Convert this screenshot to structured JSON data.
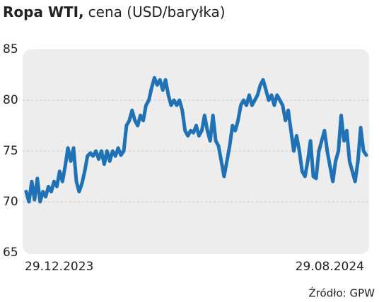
{
  "chart_data": {
    "type": "line",
    "title": "Ropa WTI,",
    "subtitle": "cena (USD/baryłka)",
    "source": "Źródło: GPW",
    "categories": [
      "29.12.2023",
      null,
      null,
      null,
      null,
      null,
      null,
      null,
      null,
      null,
      null,
      null,
      null,
      null,
      null,
      null,
      null,
      null,
      null,
      null,
      null,
      null,
      null,
      null,
      null,
      null,
      null,
      null,
      null,
      null,
      null,
      null,
      null,
      null,
      null,
      null,
      null,
      null,
      null,
      null,
      null,
      null,
      null,
      null,
      null,
      null,
      null,
      null,
      null,
      null,
      null,
      null,
      null,
      null,
      null,
      null,
      null,
      null,
      null,
      null,
      null,
      null,
      null,
      null,
      null,
      null,
      null,
      null,
      null,
      null,
      null,
      null,
      null,
      null,
      null,
      null,
      null,
      null,
      null,
      null,
      null,
      null,
      null,
      null,
      null,
      null,
      null,
      null,
      null,
      null,
      null,
      null,
      null,
      null,
      null,
      null,
      null,
      null,
      null,
      null,
      null,
      null,
      null,
      null,
      null,
      null,
      null,
      null,
      null,
      null,
      null,
      null,
      null,
      null,
      null,
      null,
      null,
      null,
      null,
      null,
      null,
      null,
      "29.08.2024"
    ],
    "values": [
      71,
      70,
      72,
      70.2,
      72.3,
      70,
      71,
      70.5,
      71.5,
      71,
      72,
      71.5,
      73,
      72,
      73.5,
      75.3,
      74,
      75.3,
      72,
      71,
      71.8,
      73,
      74.5,
      74.8,
      74.5,
      75,
      74.2,
      75,
      73.7,
      75,
      74,
      75,
      74.5,
      75.3,
      74.6,
      75,
      77.5,
      78,
      79,
      78,
      77.5,
      78.5,
      78,
      79.5,
      80,
      81.2,
      82.2,
      81.5,
      82,
      81,
      82,
      80.5,
      79.5,
      80,
      79.5,
      80,
      79,
      77,
      76.5,
      77,
      76.8,
      77.5,
      76.5,
      77,
      78.5,
      77,
      76,
      78.5,
      76,
      75.5,
      74,
      72.5,
      74,
      75.5,
      77.5,
      77,
      78,
      79.5,
      80,
      79.5,
      80.5,
      79.5,
      80,
      80.5,
      81.5,
      82,
      81,
      80,
      80.5,
      79.5,
      80.5,
      80,
      79.5,
      78,
      79,
      77,
      75,
      76.5,
      75,
      73,
      72.5,
      74,
      76,
      72.5,
      72.3,
      75,
      76,
      77,
      75,
      73.5,
      72,
      74,
      75,
      78.5,
      76,
      77,
      74,
      73,
      72,
      74,
      77.3,
      75,
      74.6
    ],
    "color": "#1f72b5",
    "ylim": [
      65,
      85
    ],
    "yticks": [
      65,
      70,
      75,
      80,
      85
    ],
    "grid": true
  }
}
